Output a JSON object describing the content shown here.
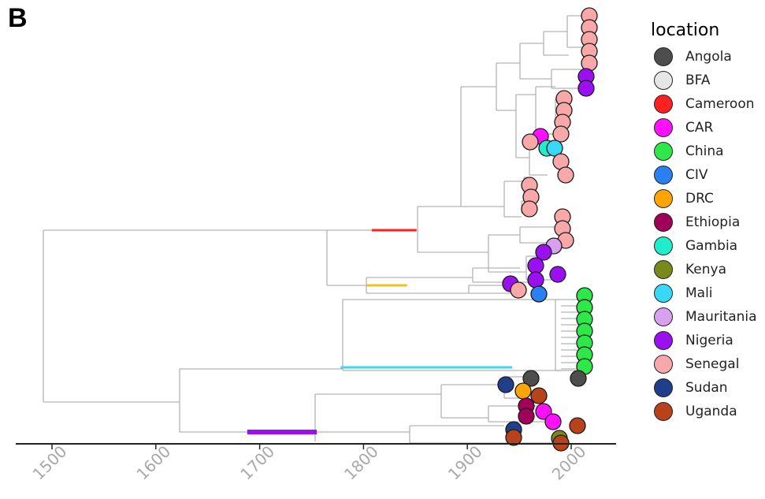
{
  "panel_label": "B",
  "legend": {
    "title": "location",
    "items": [
      {
        "label": "Angola",
        "color": "#4d4d4d"
      },
      {
        "label": "BFA",
        "color": "#e6e6e6"
      },
      {
        "label": "Cameroon",
        "color": "#ff2020"
      },
      {
        "label": "CAR",
        "color": "#ff10ff"
      },
      {
        "label": "China",
        "color": "#2ee84a"
      },
      {
        "label": "CIV",
        "color": "#2a80f0"
      },
      {
        "label": "DRC",
        "color": "#ffa500"
      },
      {
        "label": "Ethiopia",
        "color": "#a0005a"
      },
      {
        "label": "Gambia",
        "color": "#20eecb"
      },
      {
        "label": "Kenya",
        "color": "#7a8a1a"
      },
      {
        "label": "Mali",
        "color": "#38d8f8"
      },
      {
        "label": "Mauritania",
        "color": "#d9a0f0"
      },
      {
        "label": "Nigeria",
        "color": "#9a10f0"
      },
      {
        "label": "Senegal",
        "color": "#f8a8a8"
      },
      {
        "label": "Sudan",
        "color": "#1f3f8a"
      },
      {
        "label": "Uganda",
        "color": "#b8421a"
      }
    ]
  },
  "axis": {
    "range": [
      1450,
      2020
    ],
    "ticks": [
      "1500",
      "1600",
      "1700",
      "1800",
      "1900",
      "2000"
    ]
  },
  "colored_branches": [
    {
      "from": 1808,
      "to": 1851,
      "color": "#ff2020",
      "clade": "Cameroon"
    },
    {
      "from": 1803,
      "to": 1842,
      "color": "#f0c020",
      "clade": "unlabeled"
    },
    {
      "from": 1778,
      "to": 1943,
      "color": "#38d8f8",
      "clade": "Mali"
    },
    {
      "from": 1688,
      "to": 1755,
      "color": "#9a10f0",
      "clade": "Nigeria"
    }
  ]
}
